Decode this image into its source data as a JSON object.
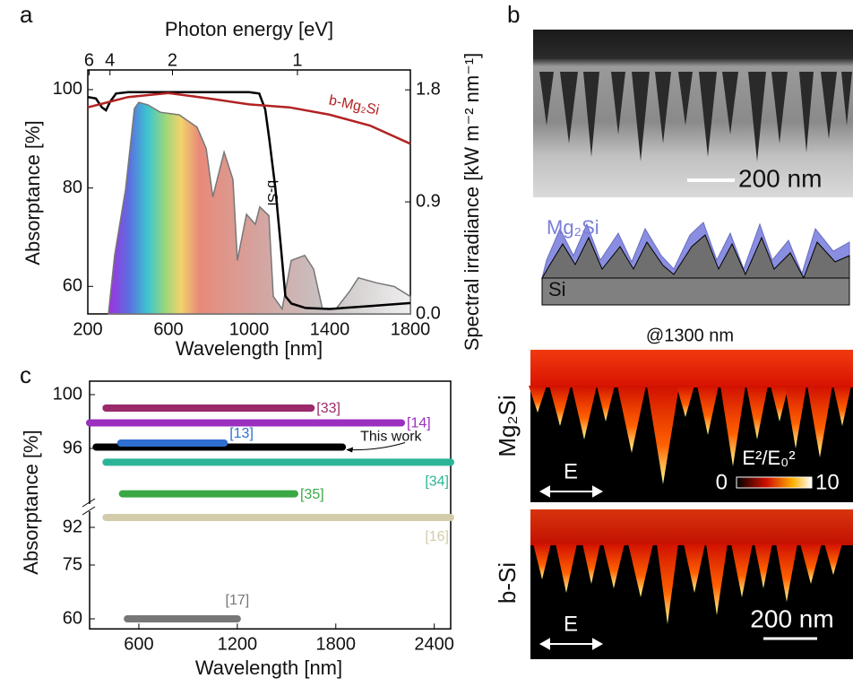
{
  "chart_data": [
    {
      "type": "line",
      "panel": "a",
      "x_label": "Wavelength [nm]",
      "y_label": "Absorptance [%]",
      "x2_label": "Photon energy [eV]",
      "y2_label": "Spectral irradiance [kW m⁻² nm⁻¹]",
      "xlim": [
        200,
        1800
      ],
      "xticks": [
        200,
        600,
        1000,
        1400,
        1800
      ],
      "ylim": [
        54.4,
        104
      ],
      "yticks": [
        60,
        80,
        100
      ],
      "y2lim": [
        0,
        1.96
      ],
      "y2ticks": [
        {
          "value": 0,
          "label": "0.0"
        },
        0.9,
        1.8
      ],
      "x2ticks": [
        6,
        4,
        2,
        1
      ],
      "series": [
        {
          "axis": "y2",
          "style": "area",
          "color": "#777777",
          "x": [
            302,
            333,
            387,
            431,
            453,
            498,
            560,
            653,
            742,
            787,
            820,
            876,
            920,
            942,
            987,
            1031,
            1053,
            1098,
            1120,
            1164,
            1209,
            1276,
            1320,
            1364,
            1431,
            1498,
            1542,
            1631,
            1720,
            1800
          ],
          "values": [
            0,
            0.47,
            1.0,
            1.65,
            1.7,
            1.68,
            1.62,
            1.6,
            1.5,
            1.33,
            0.94,
            1.3,
            1.08,
            0.43,
            0.8,
            0.72,
            0.86,
            0.79,
            0.14,
            0.04,
            0.43,
            0.47,
            0.36,
            0.04,
            0.04,
            0.18,
            0.29,
            0.25,
            0.22,
            0.14
          ]
        },
        {
          "name": "b-Si",
          "color": "#000000",
          "x": [
            200,
            240,
            270,
            290,
            310,
            340,
            400,
            600,
            800,
            1000,
            1050,
            1080,
            1100,
            1130,
            1160,
            1180,
            1210,
            1280,
            1400,
            1600,
            1800
          ],
          "values": [
            98.5,
            98.2,
            96.4,
            95.8,
            97.5,
            99.2,
            99.5,
            99.5,
            99.5,
            99.5,
            99.2,
            96,
            90,
            80,
            67,
            58,
            56.5,
            55.6,
            55.4,
            56,
            56.6
          ]
        },
        {
          "name": "b-Mg₂Si",
          "color": "#b22222",
          "x": [
            200,
            400,
            600,
            800,
            1000,
            1200,
            1400,
            1600,
            1800
          ],
          "values": [
            96.4,
            98.5,
            99.3,
            98.2,
            97,
            96.4,
            94.9,
            92.7,
            89
          ]
        }
      ]
    },
    {
      "type": "range",
      "panel": "c",
      "x_label": "Wavelength [nm]",
      "y_label": "Absorptance [%]",
      "xlim": [
        300,
        2500
      ],
      "xticks": [
        600,
        1200,
        1800,
        2400
      ],
      "ylim": [
        57.2,
        101
      ],
      "yticks": [
        100,
        96,
        92,
        75,
        60
      ],
      "series": [
        {
          "name": "[33]",
          "color": "#9a2a6a",
          "start": 400,
          "end": 1650,
          "value": 99
        },
        {
          "name": "[14]",
          "color": "#9a2fc0",
          "start": 300,
          "end": 2200,
          "value": 97.9
        },
        {
          "name": "This work",
          "color": "#000000",
          "start": 340,
          "end": 1840,
          "value": 96.1
        },
        {
          "name": "[13]",
          "color": "#2f6fd0",
          "start": 490,
          "end": 1120,
          "value": 96.4
        },
        {
          "name": "[34]",
          "color": "#2bb597",
          "start": 400,
          "end": 2500,
          "value": 95.3
        },
        {
          "name": "[35]",
          "color": "#3aa845",
          "start": 500,
          "end": 1550,
          "value": 93.7
        },
        {
          "name": "[16]",
          "color": "#d2ccaa",
          "start": 400,
          "end": 2500,
          "value": 92.5
        },
        {
          "name": "[17]",
          "color": "#777777",
          "start": 530,
          "end": 1200,
          "value": 60
        }
      ]
    }
  ],
  "panel_b": {
    "panel": "b",
    "sem_scale": "200 nm",
    "schematic_layer": "Mg₂Si",
    "schematic_substrate": "Si",
    "wavelength": "@1300 nm",
    "row_labels": [
      "Mg₂Si",
      "b-Si"
    ],
    "field_labels": [
      "E",
      "E"
    ],
    "colorbar_label": "E²/E₀²",
    "colorbar_ticks": [
      0,
      10
    ],
    "scale_bar": "200 nm"
  }
}
